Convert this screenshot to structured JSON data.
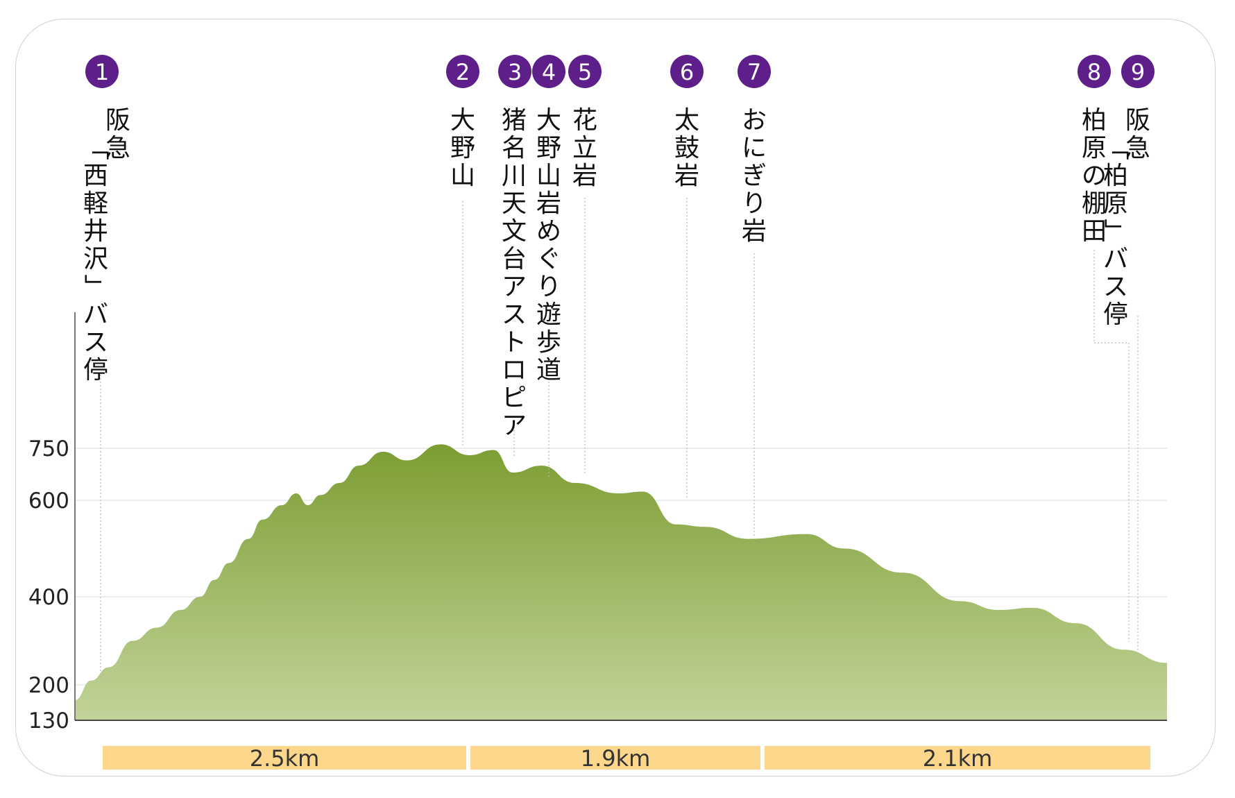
{
  "chart_data": {
    "type": "area",
    "y_ticks": [
      130,
      200,
      400,
      600,
      750
    ],
    "ylim": [
      130,
      850
    ],
    "x_range_km": [
      0,
      6.5
    ],
    "grid": true,
    "colors": {
      "fill_top": "#7c9d32",
      "fill_bottom": "#c2d49a",
      "badge": "#5e1f8a",
      "segment_bar": "#fbd68b"
    },
    "elevation_profile": [
      [
        0.0,
        170
      ],
      [
        0.17,
        210
      ],
      [
        0.35,
        240
      ],
      [
        0.6,
        300
      ],
      [
        0.85,
        330
      ],
      [
        1.1,
        370
      ],
      [
        1.3,
        400
      ],
      [
        1.45,
        435
      ],
      [
        1.6,
        470
      ],
      [
        1.8,
        520
      ],
      [
        1.95,
        560
      ],
      [
        2.15,
        590
      ],
      [
        2.3,
        620
      ],
      [
        2.42,
        590
      ],
      [
        2.55,
        615
      ],
      [
        2.75,
        650
      ],
      [
        2.95,
        700
      ],
      [
        3.2,
        740
      ],
      [
        3.45,
        715
      ],
      [
        3.8,
        760
      ],
      [
        4.1,
        730
      ],
      [
        4.35,
        745
      ],
      [
        4.55,
        680
      ],
      [
        4.85,
        700
      ],
      [
        5.2,
        650
      ],
      [
        5.65,
        620
      ],
      [
        5.9,
        625
      ],
      [
        6.25,
        550
      ],
      [
        6.55,
        545
      ],
      [
        7.0,
        520
      ],
      [
        7.6,
        530
      ],
      [
        8.0,
        500
      ],
      [
        8.6,
        450
      ],
      [
        9.2,
        390
      ],
      [
        9.6,
        370
      ],
      [
        9.95,
        375
      ],
      [
        10.4,
        340
      ],
      [
        10.9,
        280
      ],
      [
        11.35,
        250
      ]
    ],
    "waypoints": [
      {
        "num": "1",
        "name": "阪急「西軽井沢」バス停"
      },
      {
        "num": "2",
        "name": "大野山"
      },
      {
        "num": "3",
        "name": "猪名川天文台アストロピア"
      },
      {
        "num": "4",
        "name": "大野山岩めぐり遊歩道"
      },
      {
        "num": "5",
        "name": "花立岩"
      },
      {
        "num": "6",
        "name": "太鼓岩"
      },
      {
        "num": "7",
        "name": "おにぎり岩"
      },
      {
        "num": "8",
        "name": "柏原の棚田"
      },
      {
        "num": "9",
        "name": "阪急「柏原」バス停"
      }
    ],
    "segments": [
      {
        "label": "2.5km"
      },
      {
        "label": "1.9km"
      },
      {
        "label": "2.1km"
      }
    ]
  }
}
